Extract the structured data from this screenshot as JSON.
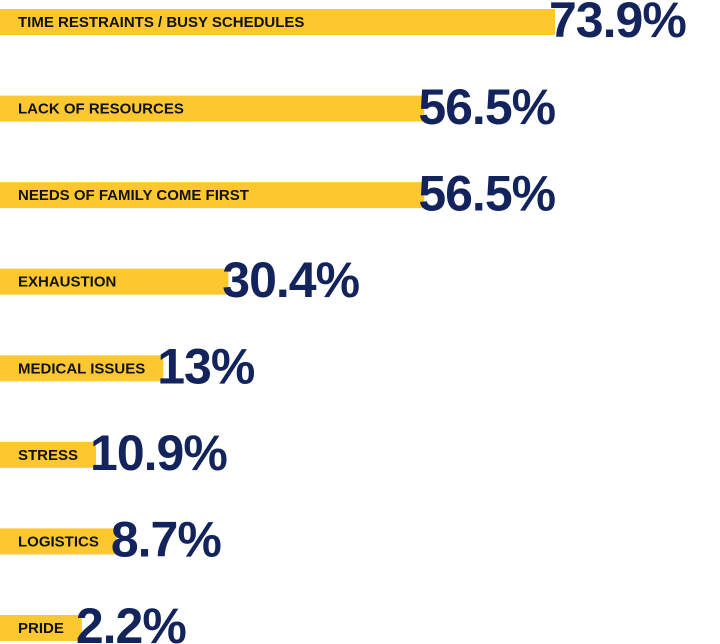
{
  "chart_data": {
    "type": "bar",
    "orientation": "horizontal",
    "categories": [
      "TIME RESTRAINTS / BUSY SCHEDULES",
      "LACK OF RESOURCES",
      "NEEDS OF FAMILY COME FIRST",
      "EXHAUSTION",
      "MEDICAL ISSUES",
      "STRESS",
      "LOGISTICS",
      "PRIDE"
    ],
    "values": [
      73.9,
      56.5,
      56.5,
      30.4,
      13,
      10.9,
      8.7,
      2.2
    ],
    "value_labels": [
      "73.9%",
      "56.5%",
      "56.5%",
      "30.4%",
      "13%",
      "10.9%",
      "8.7%",
      "2.2%"
    ],
    "color": "#fdc82f",
    "label_color": "#13245c"
  }
}
